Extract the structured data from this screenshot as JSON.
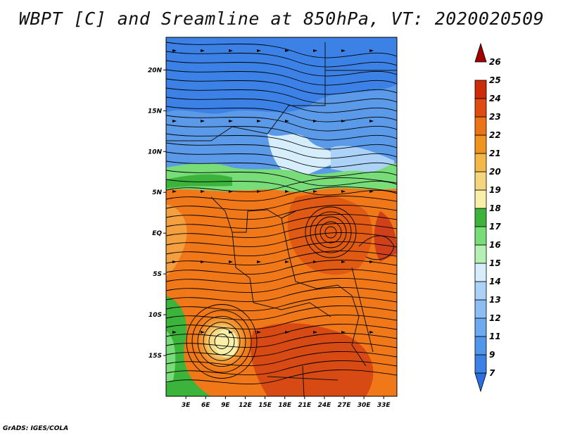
{
  "title": "WBPT [C] and Sreamline at 850hPa, VT: 2020020509",
  "credit": "GrADS: IGES/COLA",
  "map": {
    "lon_ticks": [
      "3E",
      "6E",
      "9E",
      "12E",
      "15E",
      "18E",
      "21E",
      "24E",
      "27E",
      "30E",
      "33E"
    ],
    "lat_ticks": [
      "20N",
      "15N",
      "10N",
      "5N",
      "EQ",
      "5S",
      "10S",
      "15S"
    ],
    "lon_range": [
      0,
      35
    ],
    "lat_range": [
      -20,
      24
    ]
  },
  "colorbar": {
    "labels": [
      "7",
      "9",
      "11",
      "12",
      "13",
      "14",
      "15",
      "16",
      "17",
      "18",
      "19",
      "20",
      "21",
      "22",
      "23",
      "24",
      "25",
      "26"
    ],
    "colors": [
      "#2a6ee0",
      "#3c82e6",
      "#5096ea",
      "#6eaaf0",
      "#8cbef4",
      "#acd2f8",
      "#d6eefc",
      "#b4f0b4",
      "#78dc78",
      "#3cb43c",
      "#f8f0a8",
      "#f6d67c",
      "#f4b848",
      "#f09420",
      "#ec7414",
      "#e04c10",
      "#cc2c08",
      "#a00000"
    ]
  }
}
